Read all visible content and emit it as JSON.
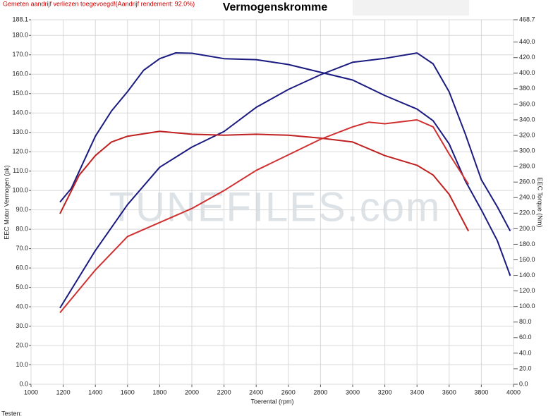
{
  "chart_data": {
    "type": "line",
    "title": "Vermogenskromme",
    "subtitle": "Gemeten aandrijf verliezen toegevoegd!(Aandrijf rendement: 92.0%)",
    "xlabel": "Toerental (rpm)",
    "ylabel": "EEC Motor Vermogen (pk)",
    "y2label": "EEC Torque (Nm)",
    "watermark": "TUNEFILES.com",
    "footer": "Testen:",
    "grid": true,
    "xlim": [
      1000,
      4000
    ],
    "xticks": [
      1000,
      1200,
      1400,
      1600,
      1800,
      2000,
      2200,
      2400,
      2600,
      2800,
      3000,
      3200,
      3400,
      3600,
      3800,
      4000
    ],
    "ylim": [
      0,
      188.1
    ],
    "yticks": [
      {
        "value": 0,
        "label": "0.0"
      },
      {
        "value": 10,
        "label": "10.0"
      },
      {
        "value": 20,
        "label": "20.0"
      },
      {
        "value": 30,
        "label": "30.0"
      },
      {
        "value": 40,
        "label": "40.0"
      },
      {
        "value": 50,
        "label": "50.0"
      },
      {
        "value": 60,
        "label": "60.0"
      },
      {
        "value": 70,
        "label": "70.0"
      },
      {
        "value": 80,
        "label": "80.0"
      },
      {
        "value": 90,
        "label": "90.0"
      },
      {
        "value": 100,
        "label": "100.0"
      },
      {
        "value": 110,
        "label": "110.0"
      },
      {
        "value": 120,
        "label": "120.0"
      },
      {
        "value": 130,
        "label": "130.0"
      },
      {
        "value": 140,
        "label": "140.0"
      },
      {
        "value": 150,
        "label": "150.0"
      },
      {
        "value": 160,
        "label": "160.0"
      },
      {
        "value": 170,
        "label": "170.0"
      },
      {
        "value": 180,
        "label": "180.0"
      },
      188.1
    ],
    "y2lim": [
      0,
      468.7
    ],
    "y2ticks": [
      {
        "value": 0,
        "label": "0.0"
      },
      {
        "value": 20,
        "label": "20.0"
      },
      {
        "value": 40,
        "label": "40.0"
      },
      {
        "value": 60,
        "label": "60.0"
      },
      {
        "value": 80,
        "label": "80.0"
      },
      {
        "value": 100,
        "label": "100.0"
      },
      {
        "value": 120,
        "label": "120.0"
      },
      {
        "value": 140,
        "label": "140.0"
      },
      {
        "value": 160,
        "label": "160.0"
      },
      {
        "value": 180,
        "label": "180.0"
      },
      {
        "value": 200,
        "label": "200.0"
      },
      {
        "value": 220,
        "label": "220.0"
      },
      {
        "value": 240,
        "label": "240.0"
      },
      {
        "value": 260,
        "label": "260.0"
      },
      {
        "value": 280,
        "label": "280.0"
      },
      {
        "value": 300,
        "label": "300.0"
      },
      {
        "value": 320,
        "label": "320.0"
      },
      {
        "value": 340,
        "label": "340.0"
      },
      {
        "value": 360,
        "label": "360.0"
      },
      {
        "value": 380,
        "label": "380.0"
      },
      {
        "value": 400,
        "label": "400.0"
      },
      {
        "value": 420,
        "label": "420.0"
      },
      {
        "value": 440,
        "label": "440.0"
      },
      468.7
    ],
    "series": [
      {
        "color": "#1a1a80",
        "x": [
          1180,
          1250,
          1400,
          1500,
          1600,
          1700,
          1800,
          1900,
          2000,
          2200,
          2400,
          2600,
          2800,
          3000,
          3200,
          3400,
          3500,
          3600,
          3700,
          3800,
          3900,
          3980
        ],
        "values": [
          94,
          101,
          128,
          141,
          151,
          162,
          168,
          171,
          170.8,
          168,
          167.5,
          165,
          161,
          157,
          149,
          142,
          136,
          124,
          105,
          90,
          74,
          56
        ]
      },
      {
        "color": "#1a1a80",
        "axis": "y2",
        "x": [
          1180,
          1400,
          1600,
          1800,
          2000,
          2200,
          2400,
          2600,
          2800,
          3000,
          3200,
          3400,
          3500,
          3600,
          3700,
          3800,
          3900,
          3980
        ],
        "values": [
          98,
          172,
          231,
          279,
          305,
          325,
          356,
          379,
          398,
          414,
          419,
          426,
          412,
          376,
          322,
          263,
          228,
          197
        ]
      },
      {
        "color": "#c02020",
        "x": [
          1180,
          1300,
          1400,
          1500,
          1600,
          1800,
          2000,
          2200,
          2400,
          2600,
          2800,
          3000,
          3200,
          3400,
          3500,
          3600,
          3720
        ],
        "values": [
          88,
          108,
          118,
          125,
          128,
          130.5,
          129,
          128.5,
          129,
          128.5,
          127,
          125,
          118,
          113,
          108,
          98,
          79
        ]
      },
      {
        "color": "#d03030",
        "axis": "y2",
        "x": [
          1180,
          1400,
          1600,
          1800,
          2000,
          2200,
          2400,
          2600,
          2800,
          3000,
          3100,
          3200,
          3400,
          3500,
          3600,
          3720
        ],
        "values": [
          92,
          147,
          190,
          208,
          226,
          249,
          275,
          295,
          315,
          331,
          337,
          335,
          340,
          331,
          296,
          257
        ]
      }
    ]
  }
}
